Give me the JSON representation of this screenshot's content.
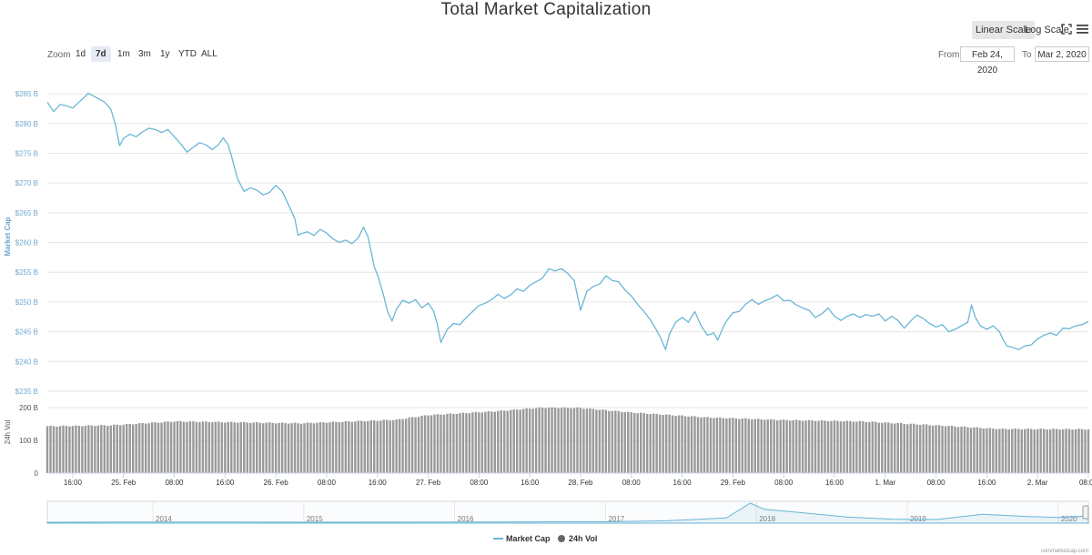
{
  "title": "Total Market Capitalization",
  "controls": {
    "linear_scale": "Linear Scale",
    "log_scale": "Log Scale",
    "zoom_label": "Zoom",
    "zoom_options": [
      "1d",
      "7d",
      "1m",
      "3m",
      "1y",
      "YTD",
      "ALL"
    ],
    "zoom_selected": "7d",
    "from_label": "From",
    "from_value": "Feb 24, 2020",
    "to_label": "To",
    "to_value": "Mar 2, 2020"
  },
  "legend": {
    "market_cap": "Market Cap",
    "vol": "24h Vol"
  },
  "credit": "coinmarketcap.com",
  "colors": {
    "market_cap": "#6ab6d6",
    "volume_bar": "#9a9a9a",
    "grid": "#e6e6e6",
    "axis_text": "#6fa8cf"
  },
  "chart_data": [
    {
      "type": "line",
      "name": "Market Cap",
      "ylabel": "Market Cap",
      "y_unit": "$ B",
      "ylim": [
        235,
        287
      ],
      "yticks": [
        235,
        240,
        245,
        250,
        255,
        260,
        265,
        270,
        275,
        280,
        285
      ],
      "ytick_labels": [
        "$235 B",
        "$240 B",
        "$245 B",
        "$250 B",
        "$255 B",
        "$260 B",
        "$265 B",
        "$270 B",
        "$275 B",
        "$280 B",
        "$285 B"
      ],
      "x_unit": "hours since 2020-02-24 12:00",
      "xlim": [
        0,
        164
      ],
      "xticks": [
        4,
        12,
        20,
        28,
        36,
        44,
        52,
        60,
        68,
        76,
        84,
        92,
        100,
        108,
        116,
        124,
        132,
        140,
        148,
        156,
        164
      ],
      "xtick_labels": [
        "16:00",
        "25. Feb",
        "08:00",
        "16:00",
        "26. Feb",
        "08:00",
        "16:00",
        "27. Feb",
        "08:00",
        "16:00",
        "28. Feb",
        "08:00",
        "16:00",
        "29. Feb",
        "08:00",
        "16:00",
        "1. Mar",
        "08:00",
        "16:00",
        "2. Mar",
        "08:00"
      ],
      "grid": true,
      "points": [
        [
          0,
          283.6
        ],
        [
          1,
          282.0
        ],
        [
          2,
          283.2
        ],
        [
          3,
          283.0
        ],
        [
          4,
          282.6
        ],
        [
          5,
          283.6
        ],
        [
          6,
          284.6
        ],
        [
          6.5,
          285.1
        ],
        [
          7,
          284.8
        ],
        [
          8,
          284.2
        ],
        [
          9,
          283.6
        ],
        [
          10,
          282.4
        ],
        [
          10.7,
          280.0
        ],
        [
          11.4,
          276.3
        ],
        [
          12,
          277.5
        ],
        [
          13,
          278.2
        ],
        [
          14,
          277.8
        ],
        [
          15,
          278.6
        ],
        [
          16,
          279.2
        ],
        [
          17,
          279.0
        ],
        [
          18,
          278.5
        ],
        [
          19,
          279.0
        ],
        [
          20,
          277.8
        ],
        [
          21,
          276.6
        ],
        [
          22,
          275.2
        ],
        [
          23,
          276.0
        ],
        [
          24,
          276.8
        ],
        [
          25,
          276.4
        ],
        [
          26,
          275.6
        ],
        [
          27,
          276.5
        ],
        [
          27.7,
          277.6
        ],
        [
          28.5,
          276.4
        ],
        [
          29,
          274.6
        ],
        [
          29.5,
          272.5
        ],
        [
          30,
          270.6
        ],
        [
          31,
          268.6
        ],
        [
          32,
          269.2
        ],
        [
          33,
          268.8
        ],
        [
          34,
          268.0
        ],
        [
          35,
          268.4
        ],
        [
          36,
          269.6
        ],
        [
          37,
          268.6
        ],
        [
          38,
          266.3
        ],
        [
          39,
          264.0
        ],
        [
          39.5,
          261.2
        ],
        [
          40,
          261.5
        ],
        [
          41,
          261.8
        ],
        [
          42,
          261.2
        ],
        [
          43,
          262.2
        ],
        [
          44,
          261.6
        ],
        [
          45,
          260.6
        ],
        [
          46,
          260.0
        ],
        [
          47,
          260.4
        ],
        [
          48,
          259.8
        ],
        [
          49,
          260.8
        ],
        [
          49.8,
          262.6
        ],
        [
          50.5,
          261.0
        ],
        [
          51,
          258.5
        ],
        [
          51.5,
          256.0
        ],
        [
          52.2,
          254.0
        ],
        [
          53,
          251.0
        ],
        [
          53.6,
          248.4
        ],
        [
          54.3,
          246.8
        ],
        [
          55,
          248.8
        ],
        [
          56,
          250.3
        ],
        [
          57,
          249.8
        ],
        [
          58,
          250.4
        ],
        [
          59,
          249.0
        ],
        [
          60,
          249.8
        ],
        [
          60.8,
          248.6
        ],
        [
          61.4,
          246.4
        ],
        [
          62,
          243.2
        ],
        [
          63,
          245.4
        ],
        [
          64,
          246.4
        ],
        [
          65,
          246.2
        ],
        [
          66,
          247.4
        ],
        [
          67,
          248.4
        ],
        [
          68,
          249.4
        ],
        [
          69,
          249.8
        ],
        [
          70,
          250.4
        ],
        [
          71,
          251.3
        ],
        [
          72,
          250.6
        ],
        [
          73,
          251.2
        ],
        [
          74,
          252.2
        ],
        [
          75,
          251.8
        ],
        [
          76,
          252.8
        ],
        [
          77,
          253.4
        ],
        [
          78,
          254.0
        ],
        [
          79,
          255.6
        ],
        [
          80,
          255.2
        ],
        [
          81,
          255.6
        ],
        [
          82,
          254.8
        ],
        [
          83,
          253.6
        ],
        [
          83.6,
          250.6
        ],
        [
          84,
          248.6
        ],
        [
          85,
          251.8
        ],
        [
          86,
          252.6
        ],
        [
          87,
          253.0
        ],
        [
          88,
          254.4
        ],
        [
          89,
          253.6
        ],
        [
          90,
          253.4
        ],
        [
          91,
          252.0
        ],
        [
          92,
          251.0
        ],
        [
          93,
          249.6
        ],
        [
          94,
          248.4
        ],
        [
          95,
          247.0
        ],
        [
          96,
          245.2
        ],
        [
          96.7,
          243.8
        ],
        [
          97.4,
          242.0
        ],
        [
          98,
          244.6
        ],
        [
          99,
          246.6
        ],
        [
          100,
          247.4
        ],
        [
          101,
          246.6
        ],
        [
          102,
          248.4
        ],
        [
          103,
          246.0
        ],
        [
          104,
          244.4
        ],
        [
          105,
          244.8
        ],
        [
          105.6,
          243.6
        ],
        [
          106.4,
          245.6
        ],
        [
          107,
          246.8
        ],
        [
          108,
          248.2
        ],
        [
          109,
          248.4
        ],
        [
          110,
          249.6
        ],
        [
          111,
          250.4
        ],
        [
          112,
          249.6
        ],
        [
          113,
          250.2
        ],
        [
          114,
          250.6
        ],
        [
          115,
          251.2
        ],
        [
          116,
          250.2
        ],
        [
          117,
          250.3
        ],
        [
          118,
          249.5
        ],
        [
          119,
          249.0
        ],
        [
          120,
          248.6
        ],
        [
          121,
          247.4
        ],
        [
          122,
          248.0
        ],
        [
          123,
          249.0
        ],
        [
          124,
          247.6
        ],
        [
          125,
          246.9
        ],
        [
          126,
          247.6
        ],
        [
          127,
          248.0
        ],
        [
          128,
          247.4
        ],
        [
          129,
          247.9
        ],
        [
          130,
          247.6
        ],
        [
          131,
          248.0
        ],
        [
          132,
          246.8
        ],
        [
          133,
          247.6
        ],
        [
          134,
          246.9
        ],
        [
          135,
          245.6
        ],
        [
          136,
          246.8
        ],
        [
          137,
          247.8
        ],
        [
          138,
          247.2
        ],
        [
          139,
          246.4
        ],
        [
          140,
          245.8
        ],
        [
          141,
          246.2
        ],
        [
          142,
          245.0
        ],
        [
          143,
          245.4
        ],
        [
          144,
          246.0
        ],
        [
          145,
          246.6
        ],
        [
          145.6,
          249.5
        ],
        [
          146.2,
          247.4
        ],
        [
          147,
          246.0
        ],
        [
          148,
          245.4
        ],
        [
          149,
          246.0
        ],
        [
          150,
          245.0
        ],
        [
          150.6,
          243.6
        ],
        [
          151.2,
          242.6
        ],
        [
          152,
          242.4
        ],
        [
          153,
          242.0
        ],
        [
          154,
          242.6
        ],
        [
          155,
          242.8
        ],
        [
          156,
          243.8
        ],
        [
          157,
          244.4
        ],
        [
          158,
          244.8
        ],
        [
          159,
          244.4
        ],
        [
          160,
          245.6
        ],
        [
          161,
          245.5
        ],
        [
          162,
          246.0
        ],
        [
          163,
          246.2
        ],
        [
          164,
          246.7
        ]
      ]
    },
    {
      "type": "bar",
      "name": "24h Vol",
      "ylabel": "24h Vol",
      "y_unit": "B",
      "ylim": [
        0,
        250
      ],
      "yticks": [
        0,
        100,
        200
      ],
      "ytick_labels": [
        "0",
        "100 B",
        "200 B"
      ],
      "grid": true,
      "bar_interval_hours": 0.5,
      "profile_hours": [
        0,
        10,
        20,
        40,
        55,
        60,
        70,
        78,
        84,
        92,
        104,
        116,
        128,
        138,
        150,
        164
      ],
      "profile_values": [
        143,
        146,
        158,
        152,
        163,
        177,
        188,
        200,
        199,
        185,
        170,
        162,
        158,
        148,
        135,
        134
      ]
    },
    {
      "type": "area",
      "name": "navigator",
      "x_unit": "year",
      "xlim": [
        2013.3,
        2020.2
      ],
      "xtick_labels": [
        "2014",
        "2015",
        "2016",
        "2017",
        "2018",
        "2019",
        "2020"
      ],
      "xtick_values": [
        2014,
        2015,
        2016,
        2017,
        2018,
        2019,
        2020
      ],
      "points": [
        [
          2013.3,
          1
        ],
        [
          2014.0,
          10
        ],
        [
          2015.0,
          4
        ],
        [
          2016.0,
          7
        ],
        [
          2017.0,
          18
        ],
        [
          2017.4,
          60
        ],
        [
          2017.8,
          180
        ],
        [
          2017.96,
          800
        ],
        [
          2018.05,
          550
        ],
        [
          2018.3,
          400
        ],
        [
          2018.6,
          220
        ],
        [
          2018.9,
          130
        ],
        [
          2019.2,
          120
        ],
        [
          2019.5,
          330
        ],
        [
          2019.8,
          240
        ],
        [
          2020.0,
          200
        ],
        [
          2020.2,
          260
        ]
      ]
    }
  ]
}
